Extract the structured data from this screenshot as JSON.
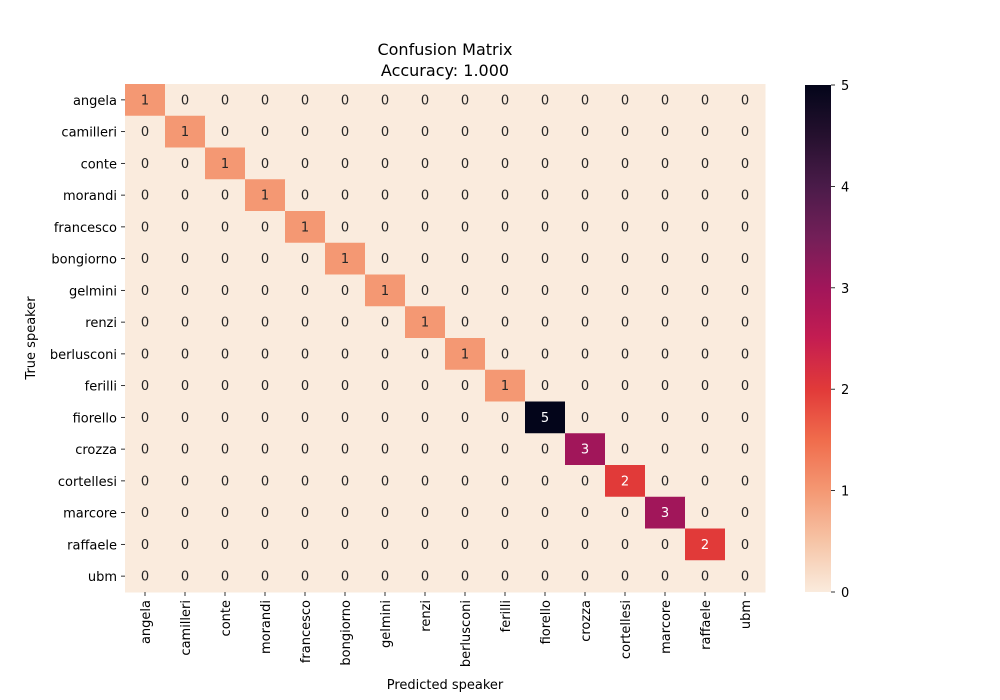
{
  "chart_data": {
    "type": "heatmap",
    "title": "Confusion Matrix",
    "subtitle": "Accuracy: 1.000",
    "xlabel": "Predicted speaker",
    "ylabel": "True speaker",
    "x_categories": [
      "angela",
      "camilleri",
      "conte",
      "morandi",
      "francesco",
      "bongiorno",
      "gelmini",
      "renzi",
      "berlusconi",
      "ferilli",
      "fiorello",
      "crozza",
      "cortellesi",
      "marcore",
      "raffaele",
      "ubm"
    ],
    "y_categories": [
      "angela",
      "camilleri",
      "conte",
      "morandi",
      "francesco",
      "bongiorno",
      "gelmini",
      "renzi",
      "berlusconi",
      "ferilli",
      "fiorello",
      "crozza",
      "cortellesi",
      "marcore",
      "raffaele",
      "ubm"
    ],
    "values": [
      [
        1,
        0,
        0,
        0,
        0,
        0,
        0,
        0,
        0,
        0,
        0,
        0,
        0,
        0,
        0,
        0
      ],
      [
        0,
        1,
        0,
        0,
        0,
        0,
        0,
        0,
        0,
        0,
        0,
        0,
        0,
        0,
        0,
        0
      ],
      [
        0,
        0,
        1,
        0,
        0,
        0,
        0,
        0,
        0,
        0,
        0,
        0,
        0,
        0,
        0,
        0
      ],
      [
        0,
        0,
        0,
        1,
        0,
        0,
        0,
        0,
        0,
        0,
        0,
        0,
        0,
        0,
        0,
        0
      ],
      [
        0,
        0,
        0,
        0,
        1,
        0,
        0,
        0,
        0,
        0,
        0,
        0,
        0,
        0,
        0,
        0
      ],
      [
        0,
        0,
        0,
        0,
        0,
        1,
        0,
        0,
        0,
        0,
        0,
        0,
        0,
        0,
        0,
        0
      ],
      [
        0,
        0,
        0,
        0,
        0,
        0,
        1,
        0,
        0,
        0,
        0,
        0,
        0,
        0,
        0,
        0
      ],
      [
        0,
        0,
        0,
        0,
        0,
        0,
        0,
        1,
        0,
        0,
        0,
        0,
        0,
        0,
        0,
        0
      ],
      [
        0,
        0,
        0,
        0,
        0,
        0,
        0,
        0,
        1,
        0,
        0,
        0,
        0,
        0,
        0,
        0
      ],
      [
        0,
        0,
        0,
        0,
        0,
        0,
        0,
        0,
        0,
        1,
        0,
        0,
        0,
        0,
        0,
        0
      ],
      [
        0,
        0,
        0,
        0,
        0,
        0,
        0,
        0,
        0,
        0,
        5,
        0,
        0,
        0,
        0,
        0
      ],
      [
        0,
        0,
        0,
        0,
        0,
        0,
        0,
        0,
        0,
        0,
        0,
        3,
        0,
        0,
        0,
        0
      ],
      [
        0,
        0,
        0,
        0,
        0,
        0,
        0,
        0,
        0,
        0,
        0,
        0,
        2,
        0,
        0,
        0
      ],
      [
        0,
        0,
        0,
        0,
        0,
        0,
        0,
        0,
        0,
        0,
        0,
        0,
        0,
        3,
        0,
        0
      ],
      [
        0,
        0,
        0,
        0,
        0,
        0,
        0,
        0,
        0,
        0,
        0,
        0,
        0,
        0,
        2,
        0
      ],
      [
        0,
        0,
        0,
        0,
        0,
        0,
        0,
        0,
        0,
        0,
        0,
        0,
        0,
        0,
        0,
        0
      ]
    ],
    "colorbar": {
      "min": 0,
      "max": 5,
      "ticks": [
        0,
        1,
        2,
        3,
        4,
        5
      ],
      "colormap": "rocket_r"
    },
    "grid": false,
    "legend": "colorbar-right"
  }
}
